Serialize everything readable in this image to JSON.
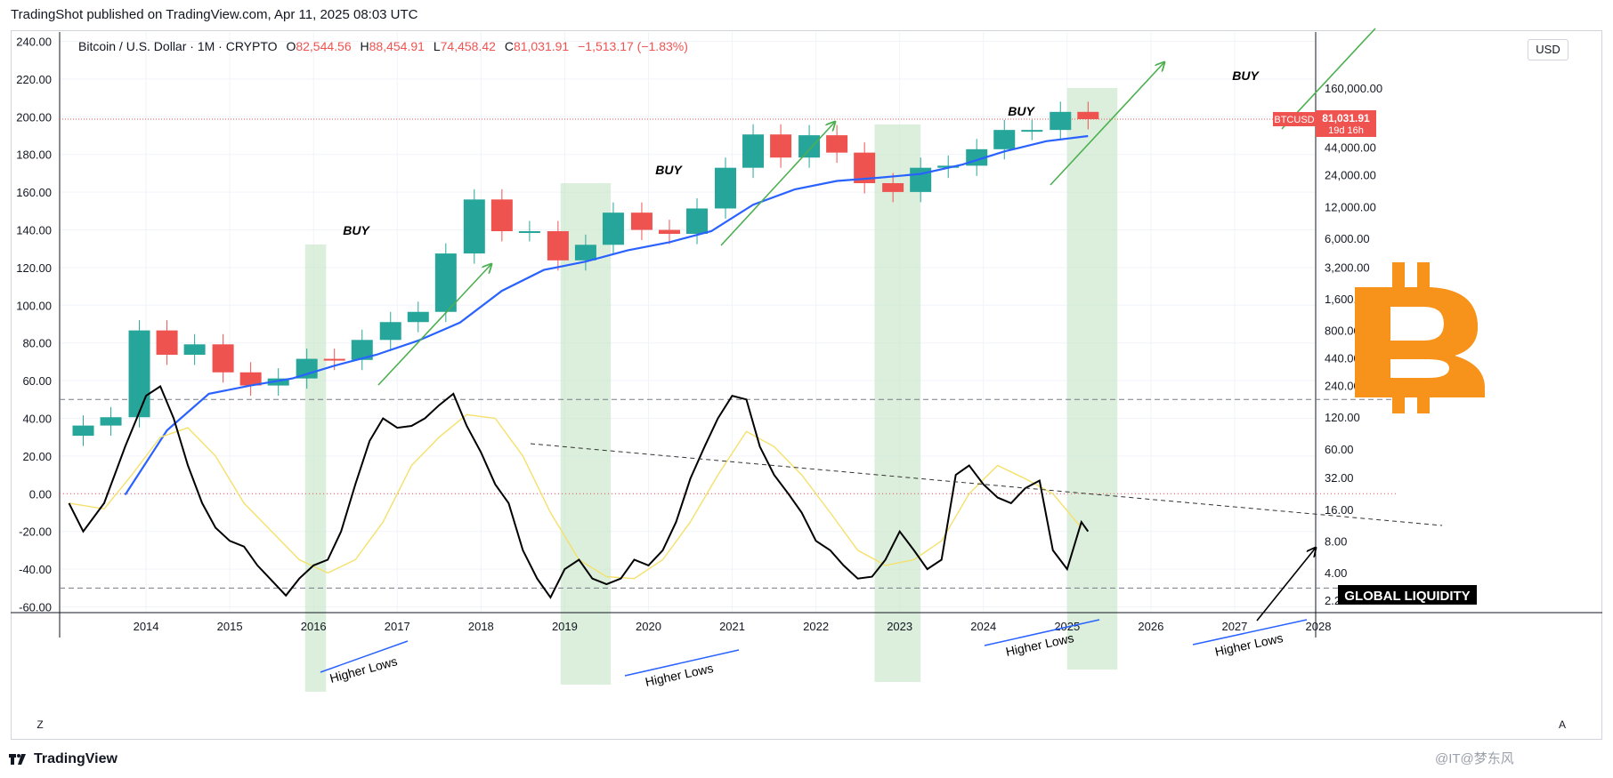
{
  "header": {
    "published": "TradingShot published on TradingView.com, Apr 11, 2025 08:03 UTC"
  },
  "legend": {
    "symbol": "Bitcoin / U.S. Dollar · 1M · CRYPTO",
    "open_label": "O",
    "open": "82,544.56",
    "high_label": "H",
    "high": "88,454.91",
    "low_label": "L",
    "low": "74,458.42",
    "close_label": "C",
    "close": "81,031.91",
    "change": "−1,513.17 (−1.83%)"
  },
  "currency_button": "USD",
  "price_tag": {
    "symbol": "BTCUSD",
    "price": "81,031.91",
    "countdown": "19d 16h"
  },
  "footer": {
    "brand": "TradingView",
    "watermark": "@IT@梦东风"
  },
  "buttons": {
    "zoom": "Z",
    "auto": "A"
  },
  "annotations": {
    "buy": [
      "BUY",
      "BUY",
      "BUY",
      "BUY"
    ],
    "higher_lows": [
      "Higher Lows",
      "Higher Lows",
      "Higher Lows",
      "Higher Lows"
    ],
    "global_liquidity": "GLOBAL LIQUIDITY"
  },
  "colors": {
    "up": "#26a69a",
    "down": "#ef5350",
    "ma": "#2962ff",
    "buy_zone": "#c8e6c9",
    "arrow": "#4caf50",
    "bitcoin": "#f7931a",
    "liquidity": "#000000",
    "liquidity_ma": "#f5e06b"
  },
  "chart_data": {
    "type": "line",
    "title": "",
    "xlabel": "",
    "ylabel": "",
    "x_ticks": [
      "2014",
      "2015",
      "2016",
      "2017",
      "2018",
      "2019",
      "2020",
      "2021",
      "2022",
      "2023",
      "2024",
      "2025",
      "2026",
      "2027",
      "2028"
    ],
    "left_axis": {
      "ticks": [
        "240.00",
        "220.00",
        "200.00",
        "180.00",
        "160.00",
        "140.00",
        "120.00",
        "100.00",
        "80.00",
        "60.00",
        "40.00",
        "20.00",
        "0.00",
        "-20.00",
        "-40.00",
        "-60.00"
      ],
      "ylim": [
        -64,
        244
      ]
    },
    "right_axis": {
      "scale": "log",
      "ticks": [
        "160,000.00",
        "44,000.00",
        "24,000.00",
        "12,000.00",
        "6,000.00",
        "3,200.00",
        "1,600.00",
        "800.00",
        "440.00",
        "240.00",
        "120.00",
        "60.00",
        "32.00",
        "16.00",
        "8.00",
        "4.00",
        "2.20"
      ]
    },
    "series": [
      {
        "name": "BTCUSD",
        "type": "candlestick",
        "x": [
          2013.25,
          2013.58,
          2013.92,
          2014.25,
          2014.58,
          2014.92,
          2015.25,
          2015.58,
          2015.92,
          2016.25,
          2016.58,
          2016.92,
          2017.25,
          2017.58,
          2017.92,
          2018.25,
          2018.58,
          2018.92,
          2019.25,
          2019.58,
          2019.92,
          2020.25,
          2020.58,
          2020.92,
          2021.25,
          2021.58,
          2021.92,
          2022.25,
          2022.58,
          2022.92,
          2023.25,
          2023.58,
          2023.92,
          2024.25,
          2024.58,
          2024.92,
          2025.25
        ],
        "close": [
          100,
          120,
          800,
          470,
          590,
          320,
          240,
          280,
          430,
          420,
          650,
          960,
          1200,
          4300,
          14000,
          7000,
          7000,
          3700,
          5200,
          10500,
          7200,
          6600,
          11500,
          28000,
          58000,
          35000,
          57000,
          39000,
          20000,
          16500,
          28000,
          29300,
          42000,
          64000,
          64000,
          95000,
          81031.91
        ]
      },
      {
        "name": "Moving average",
        "type": "line",
        "x": [
          2013.75,
          2014.25,
          2014.75,
          2015.25,
          2015.75,
          2016.25,
          2016.75,
          2017.25,
          2017.75,
          2018.25,
          2018.75,
          2019.25,
          2019.75,
          2020.25,
          2020.75,
          2021.25,
          2021.75,
          2022.25,
          2022.75,
          2023.25,
          2023.75,
          2024.25,
          2024.75,
          2025.25
        ],
        "values": [
          22,
          90,
          200,
          240,
          280,
          370,
          470,
          640,
          950,
          1900,
          3000,
          3600,
          4600,
          5500,
          7000,
          12500,
          17500,
          21000,
          22500,
          24500,
          30000,
          40000,
          50000,
          56000
        ]
      },
      {
        "name": "Global Liquidity",
        "type": "line",
        "x": [
          2013.08,
          2013.25,
          2013.5,
          2013.75,
          2014.0,
          2014.17,
          2014.33,
          2014.5,
          2014.67,
          2014.83,
          2015.0,
          2015.17,
          2015.33,
          2015.5,
          2015.67,
          2015.83,
          2016.0,
          2016.17,
          2016.33,
          2016.5,
          2016.67,
          2016.83,
          2017.0,
          2017.17,
          2017.33,
          2017.5,
          2017.67,
          2017.83,
          2018.0,
          2018.17,
          2018.33,
          2018.5,
          2018.67,
          2018.83,
          2019.0,
          2019.17,
          2019.33,
          2019.5,
          2019.67,
          2019.83,
          2020.0,
          2020.17,
          2020.33,
          2020.5,
          2020.67,
          2020.83,
          2021.0,
          2021.17,
          2021.33,
          2021.5,
          2021.67,
          2021.83,
          2022.0,
          2022.17,
          2022.33,
          2022.5,
          2022.67,
          2022.83,
          2023.0,
          2023.17,
          2023.33,
          2023.5,
          2023.67,
          2023.83,
          2024.0,
          2024.17,
          2024.33,
          2024.5,
          2024.67,
          2024.83,
          2025.0,
          2025.17,
          2025.25
        ],
        "values": [
          -5,
          -20,
          -5,
          25,
          52,
          57,
          40,
          15,
          -5,
          -18,
          -25,
          -28,
          -38,
          -46,
          -54,
          -45,
          -38,
          -35,
          -20,
          5,
          28,
          40,
          35,
          36,
          40,
          47,
          53,
          36,
          22,
          5,
          -5,
          -30,
          -45,
          -55,
          -40,
          -35,
          -45,
          -48,
          -45,
          -35,
          -38,
          -30,
          -15,
          8,
          25,
          40,
          52,
          50,
          25,
          10,
          0,
          -10,
          -25,
          -30,
          -38,
          -45,
          -44,
          -35,
          -20,
          -30,
          -40,
          -35,
          10,
          15,
          5,
          -2,
          -5,
          3,
          7,
          -30,
          -40,
          -15,
          -20
        ]
      },
      {
        "name": "Global Liquidity MA",
        "type": "line",
        "x": [
          2013.08,
          2013.5,
          2013.83,
          2014.17,
          2014.5,
          2014.83,
          2015.17,
          2015.5,
          2015.83,
          2016.17,
          2016.5,
          2016.83,
          2017.17,
          2017.5,
          2017.83,
          2018.17,
          2018.5,
          2018.83,
          2019.17,
          2019.5,
          2019.83,
          2020.17,
          2020.5,
          2020.83,
          2021.17,
          2021.5,
          2021.83,
          2022.17,
          2022.5,
          2022.83,
          2023.17,
          2023.5,
          2023.83,
          2024.17,
          2024.5,
          2024.83,
          2025.17
        ],
        "values": [
          -5,
          -8,
          10,
          30,
          35,
          20,
          -5,
          -20,
          -35,
          -42,
          -35,
          -15,
          15,
          30,
          42,
          40,
          20,
          -10,
          -35,
          -44,
          -45,
          -35,
          -15,
          10,
          33,
          25,
          10,
          -10,
          -30,
          -38,
          -35,
          -25,
          0,
          15,
          8,
          0,
          -18
        ]
      }
    ],
    "buy_zones": [
      [
        2015.9,
        2016.15
      ],
      [
        2018.95,
        2019.55
      ],
      [
        2022.7,
        2023.25
      ],
      [
        2025.0,
        2025.6
      ]
    ],
    "hlines": [
      50,
      -50
    ],
    "current_price": 81031.91
  }
}
